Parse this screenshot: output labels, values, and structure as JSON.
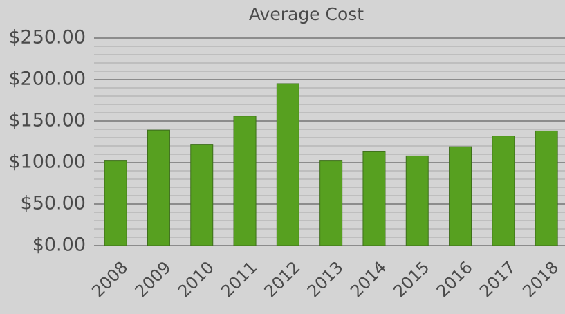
{
  "chart_data": {
    "type": "bar",
    "title": "Average Cost",
    "categories": [
      "2008",
      "2009",
      "2010",
      "2011",
      "2012",
      "2013",
      "2014",
      "2015",
      "2016",
      "2017",
      "2018"
    ],
    "values": [
      102,
      139,
      122,
      156,
      195,
      102,
      113,
      108,
      119,
      132,
      138
    ],
    "color": "#57a020",
    "ylim": [
      0,
      250
    ],
    "yticks": [
      {
        "value": 0,
        "label": "$0.00"
      },
      {
        "value": 50,
        "label": "$50.00"
      },
      {
        "value": 100,
        "label": "$100.00"
      },
      {
        "value": 150,
        "label": "$150.00"
      },
      {
        "value": 200,
        "label": "$200.00"
      },
      {
        "value": 250,
        "label": "$250.00"
      }
    ],
    "grid": true,
    "minor_grid_step": 10
  }
}
